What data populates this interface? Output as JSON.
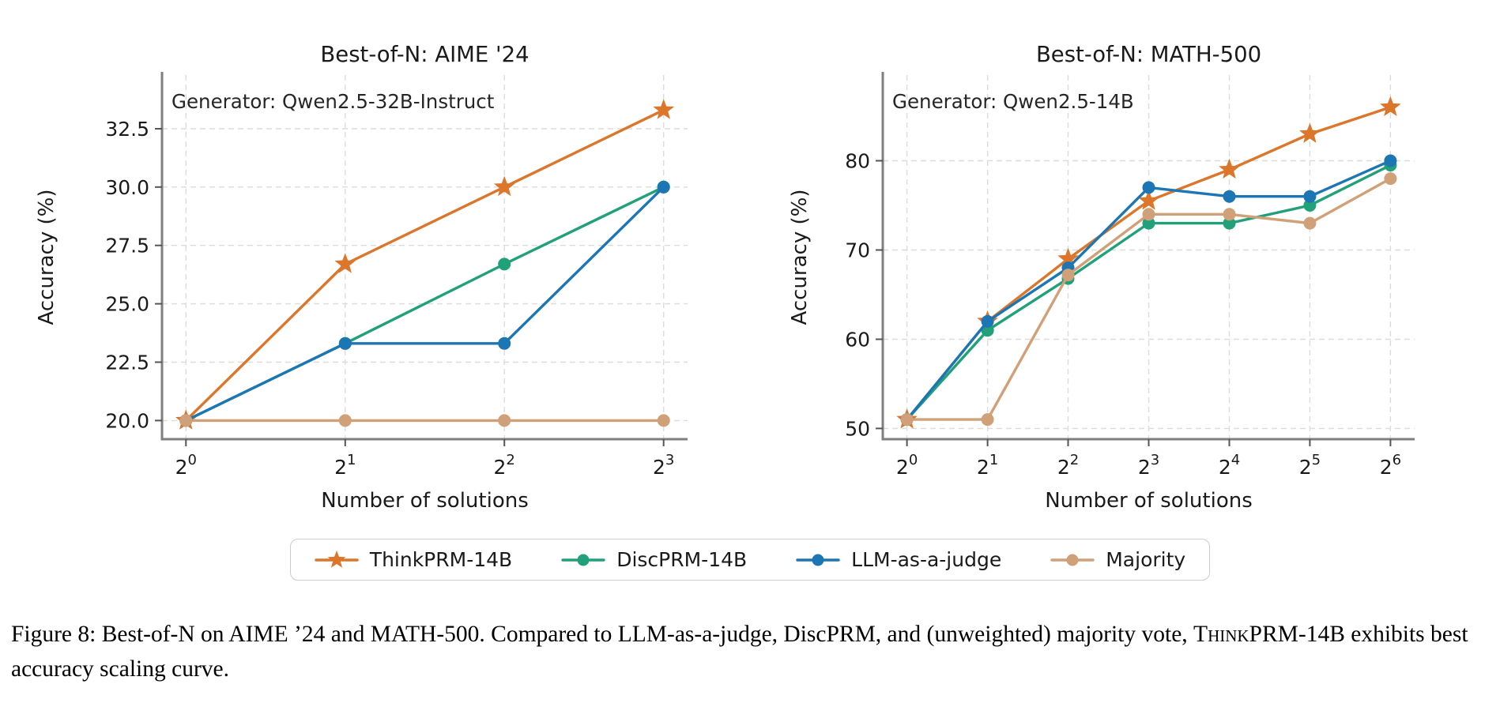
{
  "figure": {
    "caption": {
      "parts": [
        {
          "text": "Figure 8: Best-of-N on AIME ’24 and MATH-500. Compared to LLM-as-a-judge, DiscPRM, and (unweighted) majority vote, "
        },
        {
          "text": "ThinkPRM-14B",
          "smallcaps": true
        },
        {
          "text": " exhibits best accuracy scaling curve."
        }
      ]
    }
  },
  "legend": {
    "entries": [
      {
        "label": "ThinkPRM-14B",
        "color": "#db762b",
        "marker": "star"
      },
      {
        "label": "DiscPRM-14B",
        "color": "#21a179",
        "marker": "circle"
      },
      {
        "label": "LLM-as-a-judge",
        "color": "#1d76b4",
        "marker": "circle"
      },
      {
        "label": "Majority",
        "color": "#d0a078",
        "marker": "circle"
      }
    ]
  },
  "chart_data": [
    {
      "type": "line",
      "title": "Best-of-N: AIME '24",
      "annotation": "Generator: Qwen2.5-32B-Instruct",
      "xlabel": "Number of solutions",
      "ylabel": "Accuracy (%)",
      "x_ticklabels": [
        "2^0",
        "2^1",
        "2^2",
        "2^3"
      ],
      "yticks": [
        20.0,
        22.5,
        25.0,
        27.5,
        30.0,
        32.5
      ],
      "ytick_labels": [
        "20.0",
        "22.5",
        "25.0",
        "27.5",
        "30.0",
        "32.5"
      ],
      "ylim": [
        19.2,
        34.8
      ],
      "grid": true,
      "series": [
        {
          "name": "ThinkPRM-14B",
          "color": "#db762b",
          "marker": "star",
          "values": [
            20.0,
            26.7,
            30.0,
            33.3
          ]
        },
        {
          "name": "DiscPRM-14B",
          "color": "#21a179",
          "marker": "circle",
          "values": [
            20.0,
            23.3,
            26.7,
            30.0
          ]
        },
        {
          "name": "LLM-as-a-judge",
          "color": "#1d76b4",
          "marker": "circle",
          "values": [
            20.0,
            23.3,
            23.3,
            30.0
          ]
        },
        {
          "name": "Majority",
          "color": "#d0a078",
          "marker": "circle",
          "values": [
            20.0,
            20.0,
            20.0,
            20.0
          ]
        }
      ]
    },
    {
      "type": "line",
      "title": "Best-of-N: MATH-500",
      "annotation": "Generator: Qwen2.5-14B",
      "xlabel": "Number of solutions",
      "ylabel": "Accuracy (%)",
      "x_ticklabels": [
        "2^0",
        "2^1",
        "2^2",
        "2^3",
        "2^4",
        "2^5",
        "2^6"
      ],
      "yticks": [
        50,
        60,
        70,
        80
      ],
      "ytick_labels": [
        "50",
        "60",
        "70",
        "80"
      ],
      "ylim": [
        48.8,
        89.6
      ],
      "grid": true,
      "series": [
        {
          "name": "ThinkPRM-14B",
          "color": "#db762b",
          "marker": "star",
          "values": [
            51,
            62,
            69,
            75.5,
            79,
            83,
            86
          ]
        },
        {
          "name": "DiscPRM-14B",
          "color": "#21a179",
          "marker": "circle",
          "values": [
            51,
            61,
            66.8,
            73,
            73,
            75,
            79.5
          ]
        },
        {
          "name": "LLM-as-a-judge",
          "color": "#1d76b4",
          "marker": "circle",
          "values": [
            51,
            62,
            68,
            77,
            76,
            76,
            80
          ]
        },
        {
          "name": "Majority",
          "color": "#d0a078",
          "marker": "circle",
          "values": [
            51,
            51,
            67.2,
            74,
            74,
            73,
            78
          ]
        }
      ]
    }
  ]
}
